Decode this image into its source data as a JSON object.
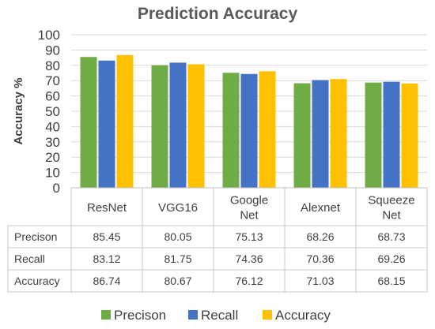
{
  "chart_data": {
    "type": "bar",
    "title": "Prediction Accuracy",
    "ylabel": "Accuracy %",
    "xlabel": "",
    "ylim": [
      0,
      100
    ],
    "yticks": [
      0,
      10,
      20,
      30,
      40,
      50,
      60,
      70,
      80,
      90,
      100
    ],
    "grid": true,
    "legend_position": "bottom",
    "categories": [
      [
        "ResNet"
      ],
      [
        "VGG16"
      ],
      [
        "Google",
        "Net"
      ],
      [
        "Alexnet"
      ],
      [
        "Squeeze",
        "Net"
      ]
    ],
    "series": [
      {
        "name": "Precison",
        "color": "#6fac46",
        "values": [
          85.45,
          80.05,
          75.13,
          68.26,
          68.73
        ],
        "labels": [
          "85.45",
          "80.05",
          "75.13",
          "68.26",
          "68.73"
        ]
      },
      {
        "name": "Recall",
        "color": "#4472c4",
        "values": [
          83.12,
          81.75,
          74.36,
          70.36,
          69.26
        ],
        "labels": [
          "83.12",
          "81.75",
          "74.36",
          "70.36",
          "69.26"
        ]
      },
      {
        "name": "Accuracy",
        "color": "#ffc000",
        "values": [
          86.74,
          80.67,
          76.12,
          71.03,
          68.15
        ],
        "labels": [
          "86.74",
          "80.67",
          "76.12",
          "71.03",
          "68.15"
        ]
      }
    ]
  }
}
